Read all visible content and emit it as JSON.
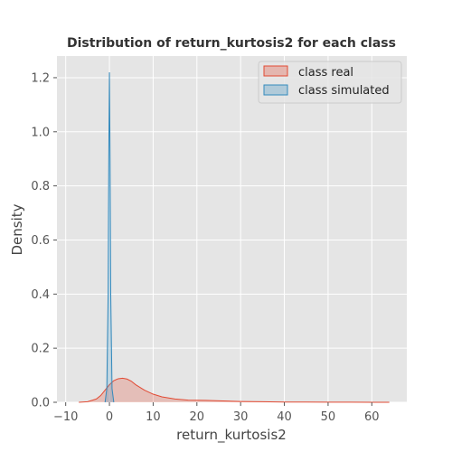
{
  "chart_data": {
    "type": "area",
    "title": "Distribution of return_kurtosis2 for each class",
    "xlabel": "return_kurtosis2",
    "ylabel": "Density",
    "xlim": [
      -12,
      68
    ],
    "ylim": [
      0,
      1.28
    ],
    "xticks": [
      -10,
      0,
      10,
      20,
      30,
      40,
      50,
      60
    ],
    "yticks": [
      0.0,
      0.2,
      0.4,
      0.6,
      0.8,
      1.0,
      1.2
    ],
    "xtick_labels": [
      "−10",
      "0",
      "10",
      "20",
      "30",
      "40",
      "50",
      "60"
    ],
    "ytick_labels": [
      "0.0",
      "0.2",
      "0.4",
      "0.6",
      "0.8",
      "1.0",
      "1.2"
    ],
    "grid": true,
    "legend_position": "top-right",
    "series": [
      {
        "name": "class real",
        "color": "#E24A33",
        "fill": "#E24A33",
        "x": [
          -7,
          -5,
          -3,
          -2,
          -1,
          0,
          1,
          2,
          3,
          4,
          5,
          6,
          8,
          10,
          12,
          15,
          18,
          22,
          26,
          30,
          35,
          40,
          45,
          50,
          55,
          60,
          64
        ],
        "y": [
          0.0,
          0.002,
          0.012,
          0.025,
          0.045,
          0.065,
          0.08,
          0.087,
          0.089,
          0.086,
          0.078,
          0.065,
          0.045,
          0.03,
          0.02,
          0.012,
          0.008,
          0.007,
          0.005,
          0.003,
          0.002,
          0.001,
          0.001,
          0.0005,
          0.0003,
          0.0001,
          0.0
        ]
      },
      {
        "name": "class simulated",
        "color": "#348ABD",
        "fill": "#348ABD",
        "x": [
          -1.0,
          -0.6,
          -0.3,
          -0.15,
          0.0,
          0.15,
          0.3,
          0.6,
          1.0
        ],
        "y": [
          0.0,
          0.05,
          0.4,
          0.9,
          1.22,
          0.9,
          0.4,
          0.05,
          0.0
        ]
      }
    ]
  }
}
